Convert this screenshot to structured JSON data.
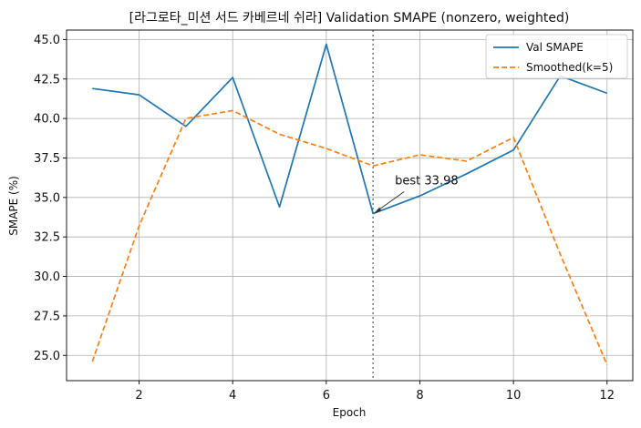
{
  "chart_data": {
    "type": "line",
    "title": "[라그로타_미션 서드 카베르네 쉬라] Validation SMAPE (nonzero, weighted)",
    "xlabel": "Epoch",
    "ylabel": "SMAPE (%)",
    "x": [
      1,
      2,
      3,
      4,
      5,
      6,
      7,
      8,
      9,
      10,
      11,
      12
    ],
    "xlim": [
      0.45,
      12.55
    ],
    "ylim": [
      23.4,
      45.6
    ],
    "xticks": [
      2,
      4,
      6,
      8,
      10,
      12
    ],
    "yticks": [
      25.0,
      27.5,
      30.0,
      32.5,
      35.0,
      37.5,
      40.0,
      42.5,
      45.0
    ],
    "grid": true,
    "legend_position": "top-right",
    "series": [
      {
        "name": "Val SMAPE",
        "color": "#1f77b4",
        "style": "solid",
        "values": [
          41.9,
          41.5,
          39.5,
          42.6,
          34.4,
          44.7,
          33.98,
          35.1,
          36.5,
          38.0,
          42.7,
          41.6
        ]
      },
      {
        "name": "Smoothed(k=5)",
        "color": "#ff7f0e",
        "style": "dashed",
        "values": [
          24.6,
          33.2,
          40.0,
          40.5,
          39.0,
          38.1,
          37.0,
          37.7,
          37.3,
          38.8,
          31.4,
          24.4
        ]
      }
    ],
    "best_marker": {
      "epoch": 7,
      "value": 33.98,
      "label": "best 33.98",
      "line_color": "#808080"
    }
  }
}
